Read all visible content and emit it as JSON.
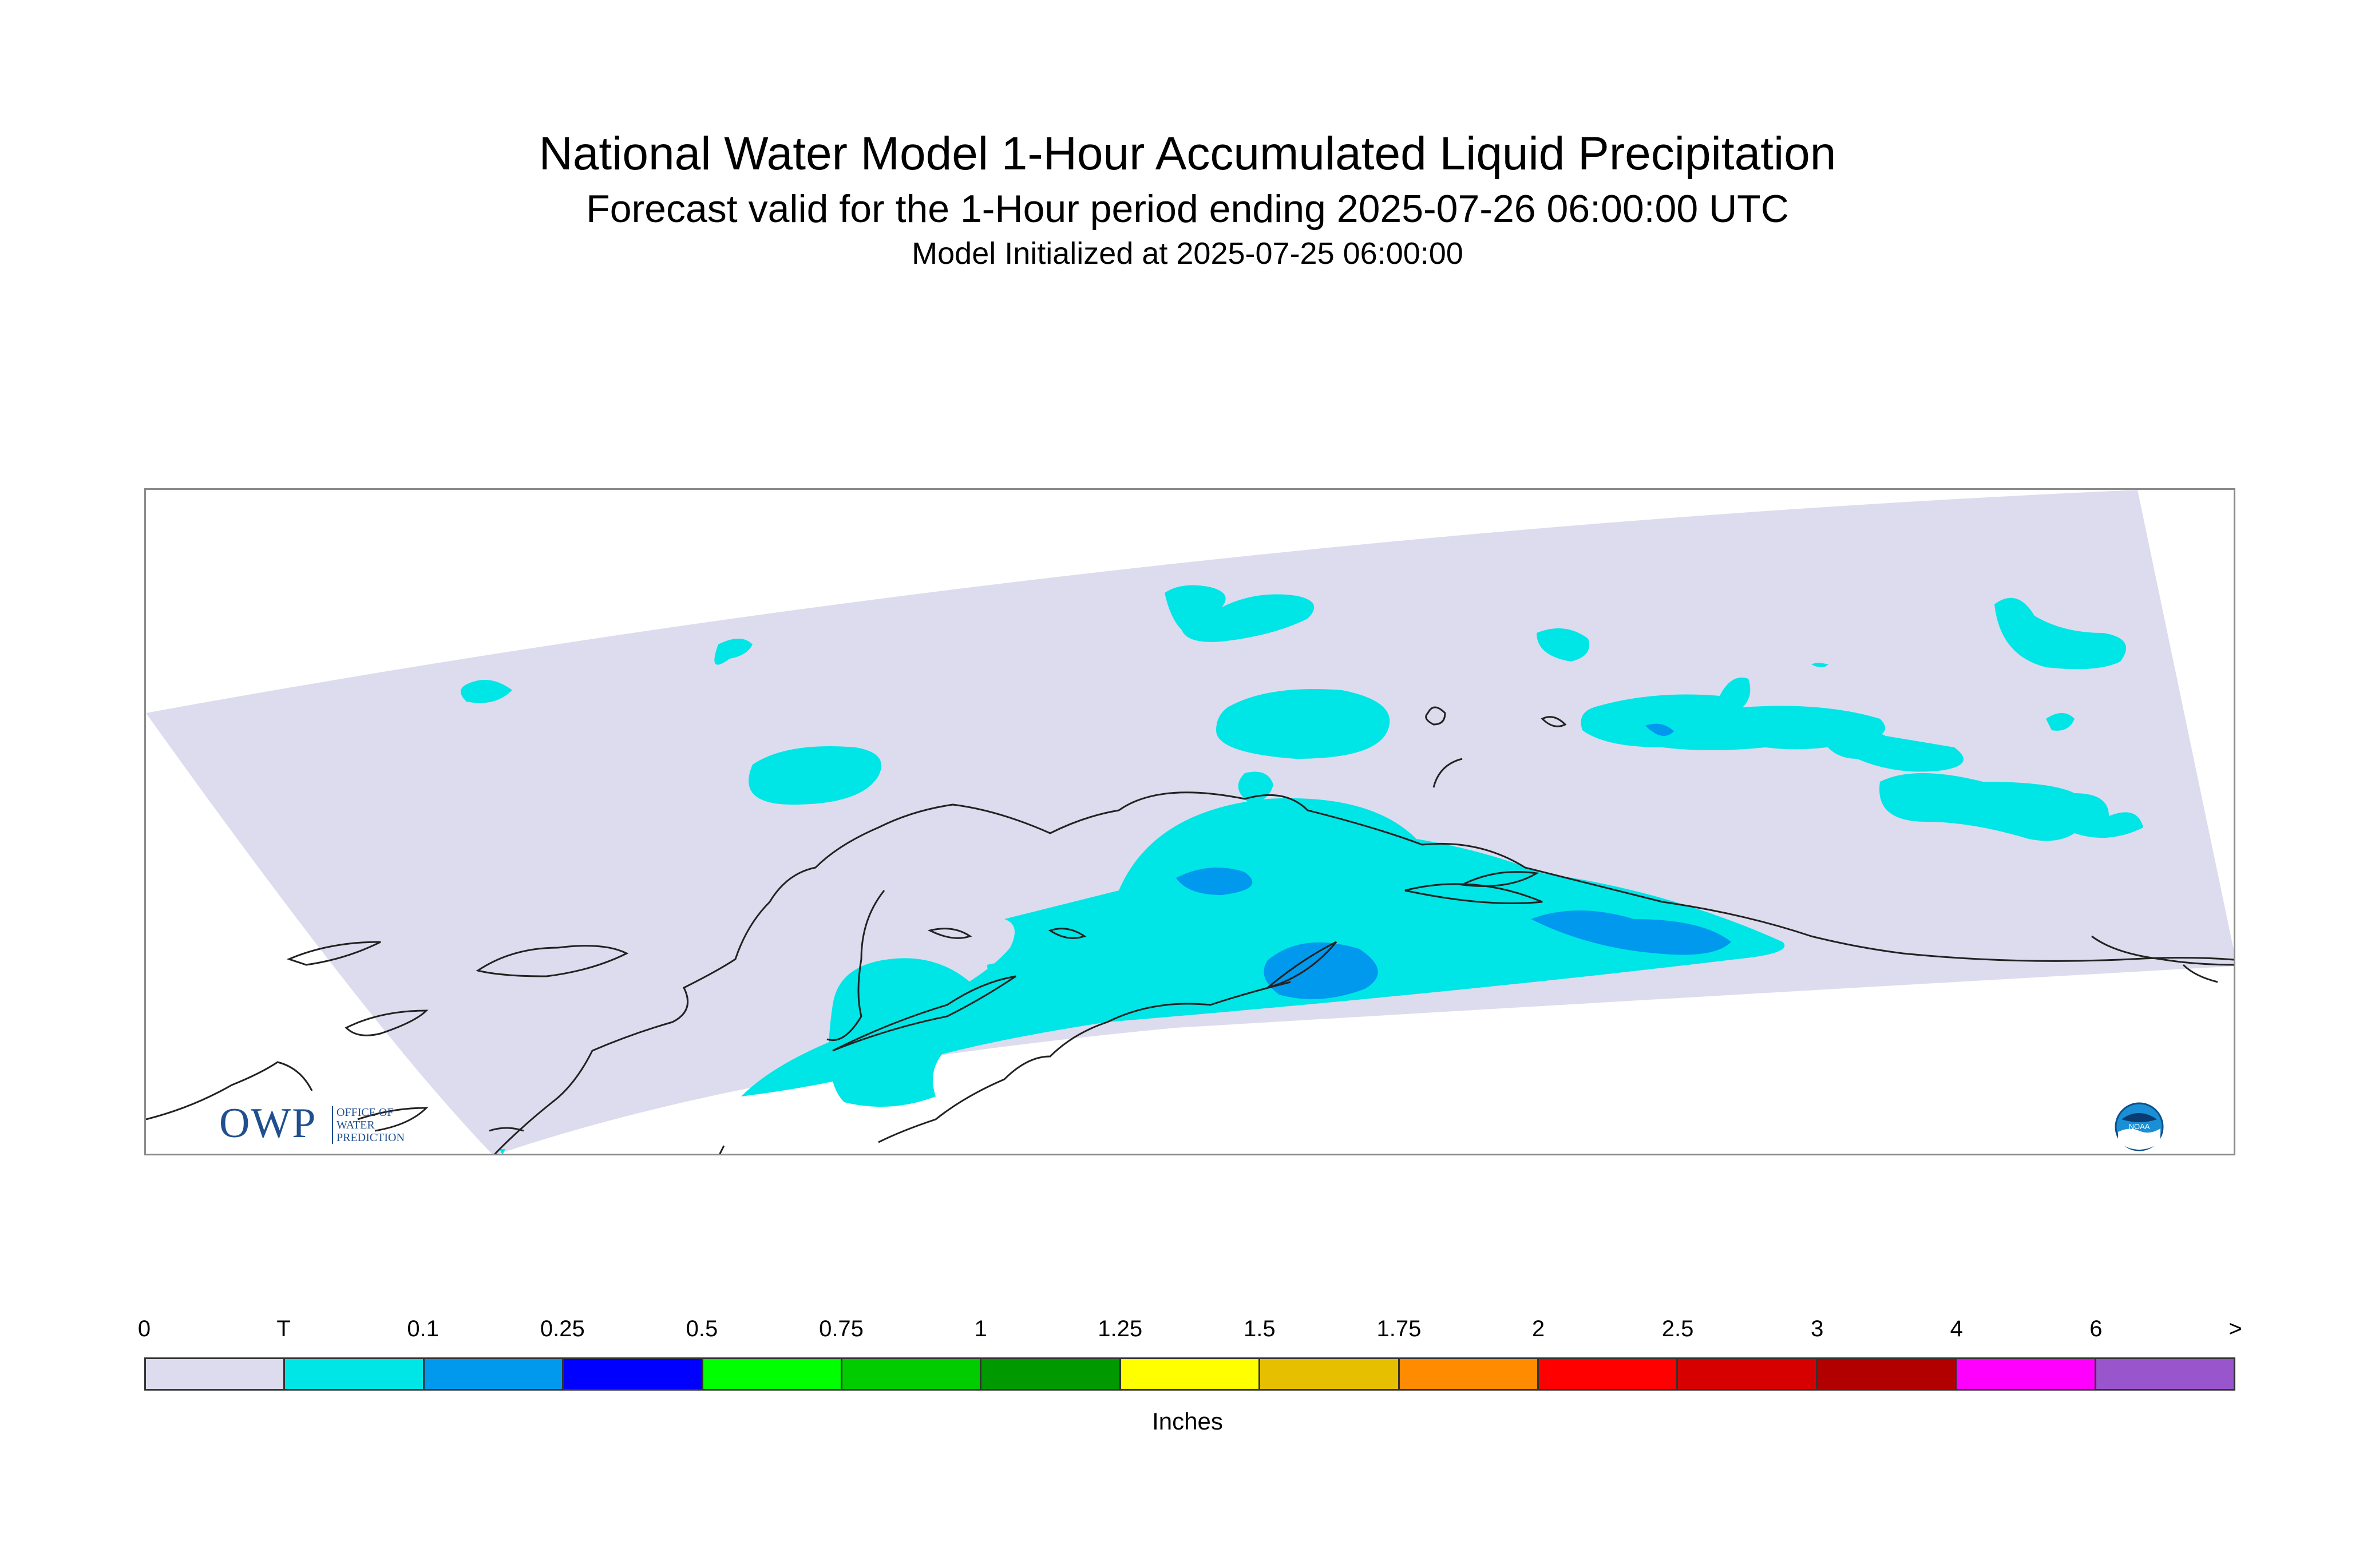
{
  "titles": {
    "main": "National Water Model 1-Hour Accumulated Liquid Precipitation",
    "valid": "Forecast valid for the 1-Hour period ending 2025-07-26 06:00:00 UTC",
    "init": "Model Initialized at 2025-07-25 06:00:00"
  },
  "logos": {
    "owp_big": "OWP",
    "owp_line1": "OFFICE OF",
    "owp_line2": "WATER",
    "owp_line3": "PREDICTION",
    "noaa": "NOAA"
  },
  "colors": {
    "domain_background": "#dcdcee",
    "trace": "#00e5e5",
    "light_blue": "#0099ee",
    "coastline": "#222222"
  },
  "legend": {
    "unit": "Inches",
    "tick_labels": [
      "0",
      "T",
      "0.1",
      "0.25",
      "0.5",
      "0.75",
      "1",
      "1.25",
      "1.5",
      "1.75",
      "2",
      "2.5",
      "3",
      "4",
      "6",
      ">"
    ],
    "colors": [
      "#dcdcee",
      "#00e5e5",
      "#0099ee",
      "#0000ff",
      "#00ff00",
      "#00cc00",
      "#009900",
      "#ffff00",
      "#e6c000",
      "#ff8c00",
      "#ff0000",
      "#d60000",
      "#b20000",
      "#ff00ff",
      "#9955cc"
    ]
  }
}
